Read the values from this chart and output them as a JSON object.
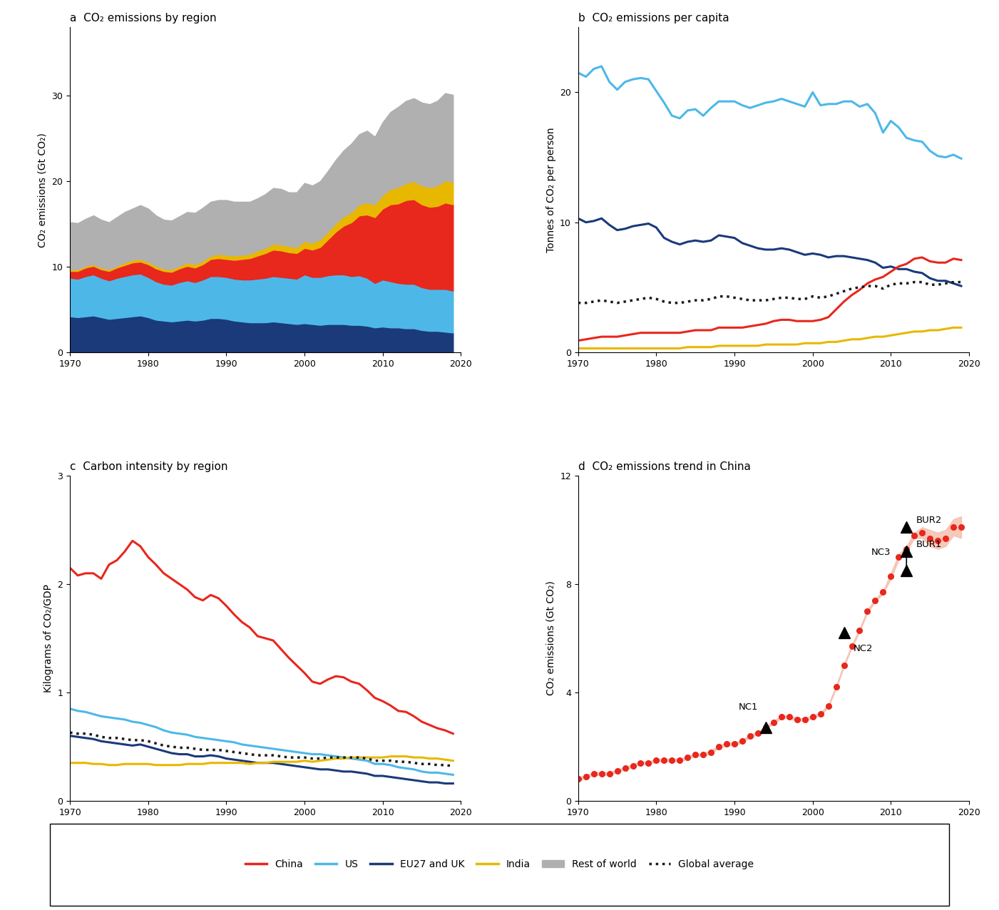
{
  "years": [
    1970,
    1971,
    1972,
    1973,
    1974,
    1975,
    1976,
    1977,
    1978,
    1979,
    1980,
    1981,
    1982,
    1983,
    1984,
    1985,
    1986,
    1987,
    1988,
    1989,
    1990,
    1991,
    1992,
    1993,
    1994,
    1995,
    1996,
    1997,
    1998,
    1999,
    2000,
    2001,
    2002,
    2003,
    2004,
    2005,
    2006,
    2007,
    2008,
    2009,
    2010,
    2011,
    2012,
    2013,
    2014,
    2015,
    2016,
    2017,
    2018,
    2019
  ],
  "panel_a": {
    "title": "a  CO₂ emissions by region",
    "ylabel": "CO₂ emissions (Gt CO₂)",
    "ylim": [
      0,
      38
    ],
    "yticks": [
      0,
      10,
      20,
      30
    ],
    "eu27uk": [
      4.2,
      4.1,
      4.2,
      4.3,
      4.1,
      3.9,
      4.0,
      4.1,
      4.2,
      4.3,
      4.1,
      3.8,
      3.7,
      3.6,
      3.7,
      3.8,
      3.7,
      3.8,
      4.0,
      4.0,
      3.9,
      3.7,
      3.6,
      3.5,
      3.5,
      3.5,
      3.6,
      3.5,
      3.4,
      3.3,
      3.4,
      3.3,
      3.2,
      3.3,
      3.3,
      3.3,
      3.2,
      3.2,
      3.1,
      2.9,
      3.0,
      2.9,
      2.9,
      2.8,
      2.8,
      2.6,
      2.5,
      2.5,
      2.4,
      2.3
    ],
    "us": [
      4.5,
      4.5,
      4.7,
      4.8,
      4.6,
      4.5,
      4.7,
      4.8,
      4.9,
      4.9,
      4.7,
      4.5,
      4.3,
      4.3,
      4.5,
      4.6,
      4.5,
      4.7,
      4.9,
      4.9,
      4.9,
      4.9,
      4.9,
      5.0,
      5.1,
      5.2,
      5.3,
      5.3,
      5.3,
      5.3,
      5.7,
      5.5,
      5.6,
      5.7,
      5.8,
      5.8,
      5.7,
      5.8,
      5.6,
      5.2,
      5.5,
      5.4,
      5.2,
      5.2,
      5.2,
      5.0,
      4.9,
      4.9,
      5.0,
      4.9
    ],
    "china": [
      0.8,
      0.9,
      1.0,
      1.0,
      1.0,
      1.1,
      1.2,
      1.3,
      1.4,
      1.4,
      1.5,
      1.5,
      1.5,
      1.5,
      1.6,
      1.7,
      1.7,
      1.8,
      2.0,
      2.1,
      2.1,
      2.2,
      2.4,
      2.5,
      2.7,
      2.9,
      3.1,
      3.1,
      3.0,
      3.0,
      3.1,
      3.2,
      3.5,
      4.2,
      5.0,
      5.7,
      6.3,
      7.0,
      7.4,
      7.7,
      8.3,
      9.0,
      9.3,
      9.8,
      9.9,
      9.7,
      9.6,
      9.7,
      10.1,
      10.1
    ],
    "india": [
      0.2,
      0.2,
      0.2,
      0.2,
      0.2,
      0.2,
      0.2,
      0.3,
      0.3,
      0.3,
      0.3,
      0.3,
      0.3,
      0.3,
      0.3,
      0.4,
      0.4,
      0.4,
      0.4,
      0.5,
      0.5,
      0.5,
      0.5,
      0.5,
      0.6,
      0.6,
      0.7,
      0.7,
      0.7,
      0.7,
      0.8,
      0.8,
      0.9,
      0.9,
      1.0,
      1.1,
      1.2,
      1.3,
      1.4,
      1.5,
      1.6,
      1.8,
      1.9,
      2.0,
      2.1,
      2.2,
      2.3,
      2.4,
      2.6,
      2.6
    ],
    "rest": [
      5.5,
      5.4,
      5.5,
      5.7,
      5.6,
      5.5,
      5.7,
      5.9,
      6.0,
      6.3,
      6.2,
      5.9,
      5.7,
      5.7,
      5.8,
      5.9,
      6.0,
      6.2,
      6.3,
      6.3,
      6.4,
      6.3,
      6.2,
      6.1,
      6.1,
      6.3,
      6.5,
      6.5,
      6.3,
      6.4,
      6.8,
      6.7,
      6.8,
      7.1,
      7.4,
      7.7,
      8.0,
      8.2,
      8.4,
      7.9,
      8.5,
      9.0,
      9.4,
      9.6,
      9.7,
      9.7,
      9.7,
      9.9,
      10.2,
      10.2
    ]
  },
  "panel_b": {
    "title": "b  CO₂ emissions per capita",
    "ylabel": "Tonnes of CO₂ per person",
    "ylim": [
      0,
      25
    ],
    "yticks": [
      0,
      10,
      20
    ],
    "us_pc": [
      21.5,
      21.2,
      21.8,
      22.0,
      20.8,
      20.2,
      20.8,
      21.0,
      21.1,
      21.0,
      20.1,
      19.2,
      18.2,
      18.0,
      18.6,
      18.7,
      18.2,
      18.8,
      19.3,
      19.3,
      19.3,
      19.0,
      18.8,
      19.0,
      19.2,
      19.3,
      19.5,
      19.3,
      19.1,
      18.9,
      20.0,
      19.0,
      19.1,
      19.1,
      19.3,
      19.3,
      18.9,
      19.1,
      18.4,
      16.9,
      17.8,
      17.3,
      16.5,
      16.3,
      16.2,
      15.5,
      15.1,
      15.0,
      15.2,
      14.9
    ],
    "eu27uk_pc": [
      10.3,
      10.0,
      10.1,
      10.3,
      9.8,
      9.4,
      9.5,
      9.7,
      9.8,
      9.9,
      9.6,
      8.8,
      8.5,
      8.3,
      8.5,
      8.6,
      8.5,
      8.6,
      9.0,
      8.9,
      8.8,
      8.4,
      8.2,
      8.0,
      7.9,
      7.9,
      8.0,
      7.9,
      7.7,
      7.5,
      7.6,
      7.5,
      7.3,
      7.4,
      7.4,
      7.3,
      7.2,
      7.1,
      6.9,
      6.5,
      6.6,
      6.4,
      6.4,
      6.2,
      6.1,
      5.7,
      5.5,
      5.5,
      5.3,
      5.1
    ],
    "china_pc": [
      0.9,
      1.0,
      1.1,
      1.2,
      1.2,
      1.2,
      1.3,
      1.4,
      1.5,
      1.5,
      1.5,
      1.5,
      1.5,
      1.5,
      1.6,
      1.7,
      1.7,
      1.7,
      1.9,
      1.9,
      1.9,
      1.9,
      2.0,
      2.1,
      2.2,
      2.4,
      2.5,
      2.5,
      2.4,
      2.4,
      2.4,
      2.5,
      2.7,
      3.3,
      3.9,
      4.4,
      4.8,
      5.3,
      5.6,
      5.8,
      6.2,
      6.6,
      6.8,
      7.2,
      7.3,
      7.0,
      6.9,
      6.9,
      7.2,
      7.1
    ],
    "india_pc": [
      0.3,
      0.3,
      0.3,
      0.3,
      0.3,
      0.3,
      0.3,
      0.3,
      0.3,
      0.3,
      0.3,
      0.3,
      0.3,
      0.3,
      0.4,
      0.4,
      0.4,
      0.4,
      0.5,
      0.5,
      0.5,
      0.5,
      0.5,
      0.5,
      0.6,
      0.6,
      0.6,
      0.6,
      0.6,
      0.7,
      0.7,
      0.7,
      0.8,
      0.8,
      0.9,
      1.0,
      1.0,
      1.1,
      1.2,
      1.2,
      1.3,
      1.4,
      1.5,
      1.6,
      1.6,
      1.7,
      1.7,
      1.8,
      1.9,
      1.9
    ],
    "global_avg": [
      3.8,
      3.8,
      3.9,
      4.0,
      3.9,
      3.8,
      3.9,
      4.0,
      4.1,
      4.2,
      4.1,
      3.9,
      3.8,
      3.8,
      3.9,
      4.0,
      4.0,
      4.1,
      4.3,
      4.3,
      4.2,
      4.1,
      4.0,
      4.0,
      4.0,
      4.1,
      4.2,
      4.2,
      4.1,
      4.1,
      4.3,
      4.2,
      4.3,
      4.5,
      4.7,
      4.9,
      5.0,
      5.1,
      5.1,
      4.9,
      5.2,
      5.3,
      5.3,
      5.4,
      5.4,
      5.2,
      5.2,
      5.3,
      5.4,
      5.4
    ]
  },
  "panel_c": {
    "title": "c  Carbon intensity by region",
    "ylabel": "Kilograms of CO₂/GDP",
    "ylim": [
      0,
      3
    ],
    "yticks": [
      0,
      1,
      2,
      3
    ],
    "china_ci": [
      2.15,
      2.08,
      2.1,
      2.1,
      2.05,
      2.18,
      2.22,
      2.3,
      2.4,
      2.35,
      2.25,
      2.18,
      2.1,
      2.05,
      2.0,
      1.95,
      1.88,
      1.85,
      1.9,
      1.87,
      1.8,
      1.72,
      1.65,
      1.6,
      1.52,
      1.5,
      1.48,
      1.4,
      1.32,
      1.25,
      1.18,
      1.1,
      1.08,
      1.12,
      1.15,
      1.14,
      1.1,
      1.08,
      1.02,
      0.95,
      0.92,
      0.88,
      0.83,
      0.82,
      0.78,
      0.73,
      0.7,
      0.67,
      0.65,
      0.62
    ],
    "us_ci": [
      0.85,
      0.83,
      0.82,
      0.8,
      0.78,
      0.77,
      0.76,
      0.75,
      0.73,
      0.72,
      0.7,
      0.68,
      0.65,
      0.63,
      0.62,
      0.61,
      0.59,
      0.58,
      0.57,
      0.56,
      0.55,
      0.54,
      0.52,
      0.51,
      0.5,
      0.49,
      0.48,
      0.47,
      0.46,
      0.45,
      0.44,
      0.43,
      0.43,
      0.42,
      0.41,
      0.4,
      0.39,
      0.38,
      0.37,
      0.34,
      0.34,
      0.33,
      0.31,
      0.3,
      0.29,
      0.27,
      0.26,
      0.26,
      0.25,
      0.24
    ],
    "eu27uk_ci": [
      0.6,
      0.59,
      0.58,
      0.57,
      0.55,
      0.54,
      0.53,
      0.52,
      0.51,
      0.52,
      0.5,
      0.48,
      0.46,
      0.44,
      0.43,
      0.43,
      0.41,
      0.41,
      0.42,
      0.41,
      0.39,
      0.38,
      0.37,
      0.36,
      0.35,
      0.35,
      0.35,
      0.34,
      0.33,
      0.32,
      0.31,
      0.3,
      0.29,
      0.29,
      0.28,
      0.27,
      0.27,
      0.26,
      0.25,
      0.23,
      0.23,
      0.22,
      0.21,
      0.2,
      0.19,
      0.18,
      0.17,
      0.17,
      0.16,
      0.16
    ],
    "india_ci": [
      0.35,
      0.35,
      0.35,
      0.34,
      0.34,
      0.33,
      0.33,
      0.34,
      0.34,
      0.34,
      0.34,
      0.33,
      0.33,
      0.33,
      0.33,
      0.34,
      0.34,
      0.34,
      0.35,
      0.35,
      0.35,
      0.35,
      0.35,
      0.34,
      0.35,
      0.35,
      0.36,
      0.36,
      0.36,
      0.36,
      0.37,
      0.36,
      0.37,
      0.38,
      0.39,
      0.39,
      0.4,
      0.4,
      0.4,
      0.4,
      0.4,
      0.41,
      0.41,
      0.41,
      0.4,
      0.4,
      0.39,
      0.39,
      0.38,
      0.37
    ],
    "global_ci": [
      0.63,
      0.62,
      0.62,
      0.61,
      0.59,
      0.58,
      0.58,
      0.57,
      0.56,
      0.56,
      0.55,
      0.53,
      0.51,
      0.5,
      0.49,
      0.49,
      0.48,
      0.47,
      0.47,
      0.47,
      0.46,
      0.45,
      0.44,
      0.43,
      0.42,
      0.42,
      0.42,
      0.41,
      0.4,
      0.4,
      0.4,
      0.39,
      0.39,
      0.4,
      0.4,
      0.4,
      0.4,
      0.4,
      0.39,
      0.37,
      0.37,
      0.37,
      0.36,
      0.36,
      0.35,
      0.34,
      0.34,
      0.33,
      0.33,
      0.32
    ]
  },
  "panel_d": {
    "title": "d  CO₂ emissions trend in China",
    "ylabel": "CO₂ emissions (Gt CO₂)",
    "ylim": [
      0,
      12
    ],
    "yticks": [
      0,
      4,
      8,
      12
    ],
    "china_d": [
      0.8,
      0.9,
      1.0,
      1.0,
      1.0,
      1.1,
      1.2,
      1.3,
      1.4,
      1.4,
      1.5,
      1.5,
      1.5,
      1.5,
      1.6,
      1.7,
      1.7,
      1.8,
      2.0,
      2.1,
      2.1,
      2.2,
      2.4,
      2.5,
      2.7,
      2.9,
      3.1,
      3.1,
      3.0,
      3.0,
      3.1,
      3.2,
      3.5,
      4.2,
      5.0,
      5.7,
      6.3,
      7.0,
      7.4,
      7.7,
      8.3,
      9.0,
      9.3,
      9.8,
      9.9,
      9.7,
      9.6,
      9.7,
      10.1,
      10.1
    ],
    "china_upper": [
      0.85,
      0.95,
      1.05,
      1.05,
      1.05,
      1.15,
      1.25,
      1.35,
      1.45,
      1.45,
      1.55,
      1.55,
      1.55,
      1.55,
      1.65,
      1.75,
      1.75,
      1.85,
      2.05,
      2.15,
      2.15,
      2.25,
      2.45,
      2.55,
      2.75,
      2.95,
      3.15,
      3.15,
      3.05,
      3.05,
      3.15,
      3.25,
      3.55,
      4.25,
      5.05,
      5.75,
      6.35,
      7.05,
      7.45,
      7.75,
      8.4,
      9.1,
      9.4,
      9.9,
      10.1,
      10.0,
      9.9,
      10.0,
      10.4,
      10.5
    ],
    "china_lower": [
      0.75,
      0.85,
      0.95,
      0.95,
      0.95,
      1.05,
      1.15,
      1.25,
      1.35,
      1.35,
      1.45,
      1.45,
      1.45,
      1.45,
      1.55,
      1.65,
      1.65,
      1.75,
      1.95,
      2.05,
      2.05,
      2.15,
      2.35,
      2.45,
      2.65,
      2.85,
      3.05,
      3.05,
      2.95,
      2.95,
      3.05,
      3.15,
      3.45,
      4.15,
      4.95,
      5.65,
      6.25,
      6.95,
      7.35,
      7.65,
      8.2,
      8.9,
      9.2,
      9.7,
      9.7,
      9.4,
      9.3,
      9.4,
      9.8,
      9.7
    ],
    "nc_years": [
      1994,
      2004,
      2012
    ],
    "nc_values": [
      2.7,
      6.2,
      8.5
    ],
    "nc_labels": [
      "NC1",
      "NC2",
      "NC3"
    ],
    "bur_years": [
      2012,
      2012
    ],
    "bur_values": [
      9.2,
      10.1
    ],
    "bur_labels": [
      "BUR1",
      "BUR2"
    ]
  },
  "colors": {
    "china": "#e8271d",
    "us": "#4db8e8",
    "eu27uk": "#1a3a7a",
    "india": "#e8b800",
    "rest": "#b0b0b0",
    "global_avg": "#1a1a1a",
    "shade": "#f5c0b0"
  },
  "legend": {
    "entries": [
      "China",
      "US",
      "EU27 and UK",
      "India",
      "Rest of world",
      "Global average"
    ]
  }
}
